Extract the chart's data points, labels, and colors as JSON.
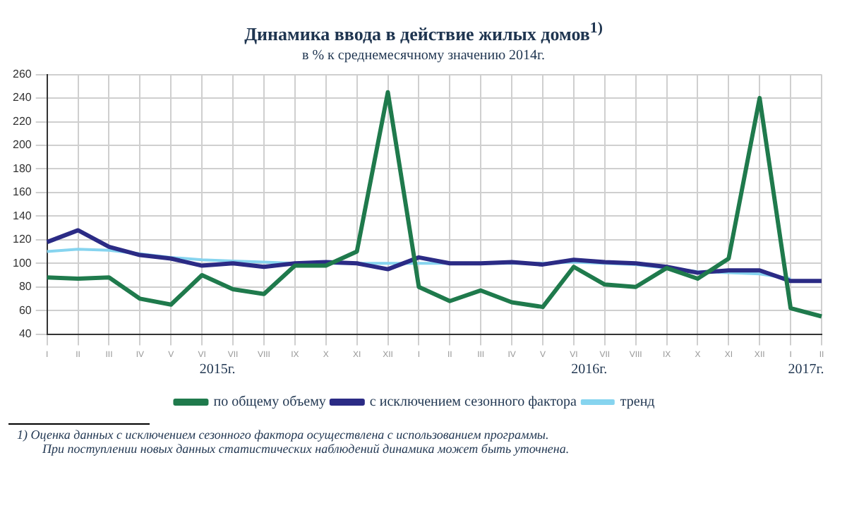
{
  "chart_data": {
    "type": "line",
    "title": "Динамика ввода в действие жилых домов$^{1)}$",
    "subtitle": "в % к среднемесячному значению 2014г.",
    "categories": [
      "I",
      "II",
      "III",
      "IV",
      "V",
      "VI",
      "VII",
      "VIII",
      "IX",
      "X",
      "XI",
      "XII",
      "I",
      "II",
      "III",
      "IV",
      "V",
      "VI",
      "VII",
      "VIII",
      "IX",
      "X",
      "XI",
      "XII",
      "I",
      "II"
    ],
    "series": [
      {
        "name": "по общему объему",
        "color": "#1f7a4c",
        "values": [
          88,
          87,
          88,
          70,
          65,
          90,
          78,
          74,
          98,
          98,
          110,
          245,
          80,
          68,
          77,
          67,
          63,
          97,
          82,
          80,
          96,
          87,
          104,
          240,
          62,
          55
        ]
      },
      {
        "name": "с исключением сезонного фактора",
        "color": "#2b2b85",
        "values": [
          118,
          128,
          114,
          107,
          104,
          98,
          100,
          97,
          100,
          101,
          100,
          95,
          105,
          100,
          100,
          101,
          99,
          103,
          101,
          100,
          97,
          92,
          94,
          94,
          85,
          85
        ]
      },
      {
        "name": "тренд",
        "color": "#86d4ef",
        "values": [
          110,
          112,
          111,
          108,
          105,
          103,
          102,
          101,
          100,
          100,
          100,
          100,
          100,
          100,
          100,
          100,
          100,
          101,
          100,
          99,
          96,
          93,
          92,
          91,
          87,
          null
        ]
      }
    ],
    "ylim": [
      40,
      260
    ],
    "yticks": [
      40,
      60,
      80,
      100,
      120,
      140,
      160,
      180,
      200,
      220,
      240,
      260
    ],
    "grid": true,
    "legend": "bottom",
    "marker": "none",
    "line_style": "solid",
    "annotations": [
      "2015г.",
      "2016г.",
      "2017г.",
      "1) Оценка данных с исключением сезонного фактора осуществлена с использованием программы.",
      "При поступлении новых данных статистических наблюдений динамика может быть уточнена."
    ]
  }
}
